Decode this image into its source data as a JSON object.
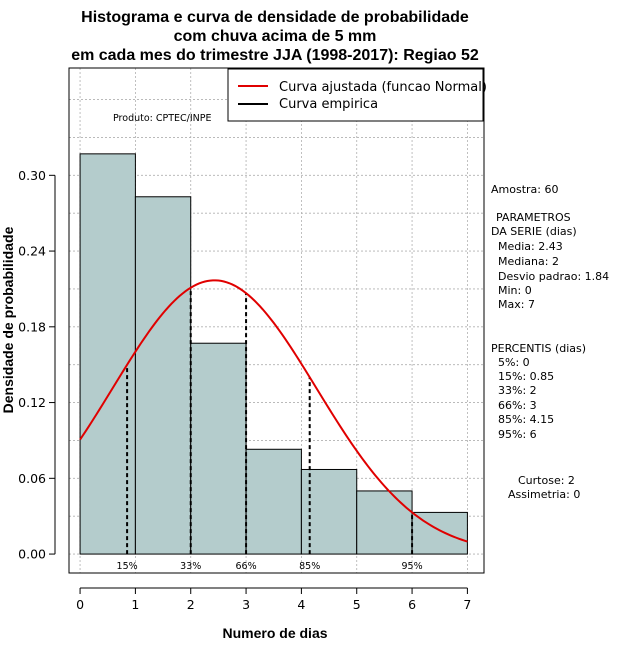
{
  "chart_data": {
    "type": "bar",
    "title_lines": [
      "Histograma e curva de densidade de probabilidade",
      "com chuva acima de 5 mm",
      "em cada mes do trimestre JJA (1998-2017): Regiao 52"
    ],
    "xlabel": "Numero de dias",
    "ylabel": "Densidade de probabilidade",
    "xlim": [
      -0.2,
      7.3
    ],
    "ylim": [
      -0.015,
      0.385
    ],
    "x_ticks": [
      "0",
      "1",
      "2",
      "3",
      "4",
      "5",
      "6",
      "7"
    ],
    "y_ticks": [
      "0.00",
      "0.06",
      "0.12",
      "0.18",
      "0.24",
      "0.30"
    ],
    "bins": [
      {
        "from": 0,
        "to": 1,
        "density": 0.317
      },
      {
        "from": 1,
        "to": 2,
        "density": 0.283
      },
      {
        "from": 2,
        "to": 3,
        "density": 0.167
      },
      {
        "from": 3,
        "to": 4,
        "density": 0.083
      },
      {
        "from": 4,
        "to": 5,
        "density": 0.067
      },
      {
        "from": 5,
        "to": 6,
        "density": 0.05
      },
      {
        "from": 6,
        "to": 7,
        "density": 0.033
      }
    ],
    "normal_fit": {
      "mean": 2.43,
      "sd": 1.84,
      "range": [
        0,
        7
      ]
    },
    "percentile_lines": [
      {
        "label": "15%",
        "x": 0.85
      },
      {
        "label": "33%",
        "x": 2
      },
      {
        "label": "66%",
        "x": 3
      },
      {
        "label": "85%",
        "x": 4.15
      },
      {
        "label": "95%",
        "x": 6
      }
    ],
    "legend": {
      "position": "top-right",
      "items": [
        {
          "label": "Curva ajustada (funcao Normal)",
          "color": "#e00000"
        },
        {
          "label": "Curva empirica",
          "color": "#000000"
        }
      ]
    },
    "colors": {
      "bar_fill": "#b4cccc",
      "curve": "#e00000",
      "grid": "#b0b0b0"
    }
  },
  "product_label": "Produto: CPTEC/INPE",
  "side_panel": {
    "amostra": "Amostra: 60",
    "params_title_1": "PARAMETROS",
    "params_title_2": "DA SERIE (dias)",
    "params": [
      "Media: 2.43",
      "Mediana: 2",
      "Desvio padrao: 1.84",
      "Min: 0",
      "Max: 7"
    ],
    "percentis_title": "PERCENTIS (dias)",
    "percentis": [
      "5%: 0",
      "15%: 0.85",
      "33%: 2",
      "66%: 3",
      "85%: 4.15",
      "95%: 6"
    ],
    "curtose": "Curtose: 2",
    "assimetria": "Assimetria: 0"
  }
}
